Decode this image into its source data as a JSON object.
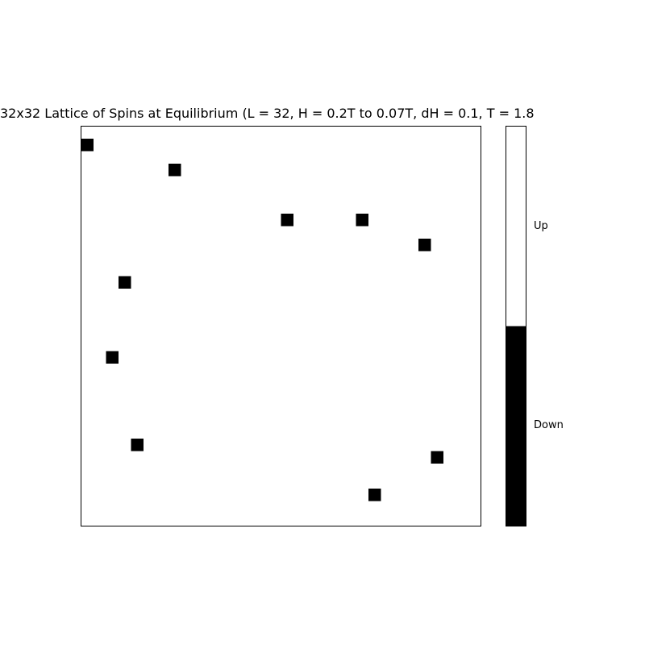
{
  "chart_data": {
    "type": "heatmap",
    "title": "32x32 Lattice of Spins at Equilibrium (L = 32,  H = 0.2T to 0.07T, dH = 0.1, T = 1.8",
    "grid_size": 32,
    "colors": {
      "up": "#ffffff",
      "down": "#000000",
      "frame": "#000000"
    },
    "down_spins": [
      [
        1,
        0
      ],
      [
        3,
        7
      ],
      [
        7,
        16
      ],
      [
        7,
        22
      ],
      [
        9,
        27
      ],
      [
        12,
        3
      ],
      [
        18,
        2
      ],
      [
        25,
        4
      ],
      [
        26,
        28
      ],
      [
        29,
        23
      ]
    ],
    "colorbar": {
      "labels": [
        "Up",
        "Down"
      ],
      "colors": [
        "#ffffff",
        "#000000"
      ]
    }
  }
}
